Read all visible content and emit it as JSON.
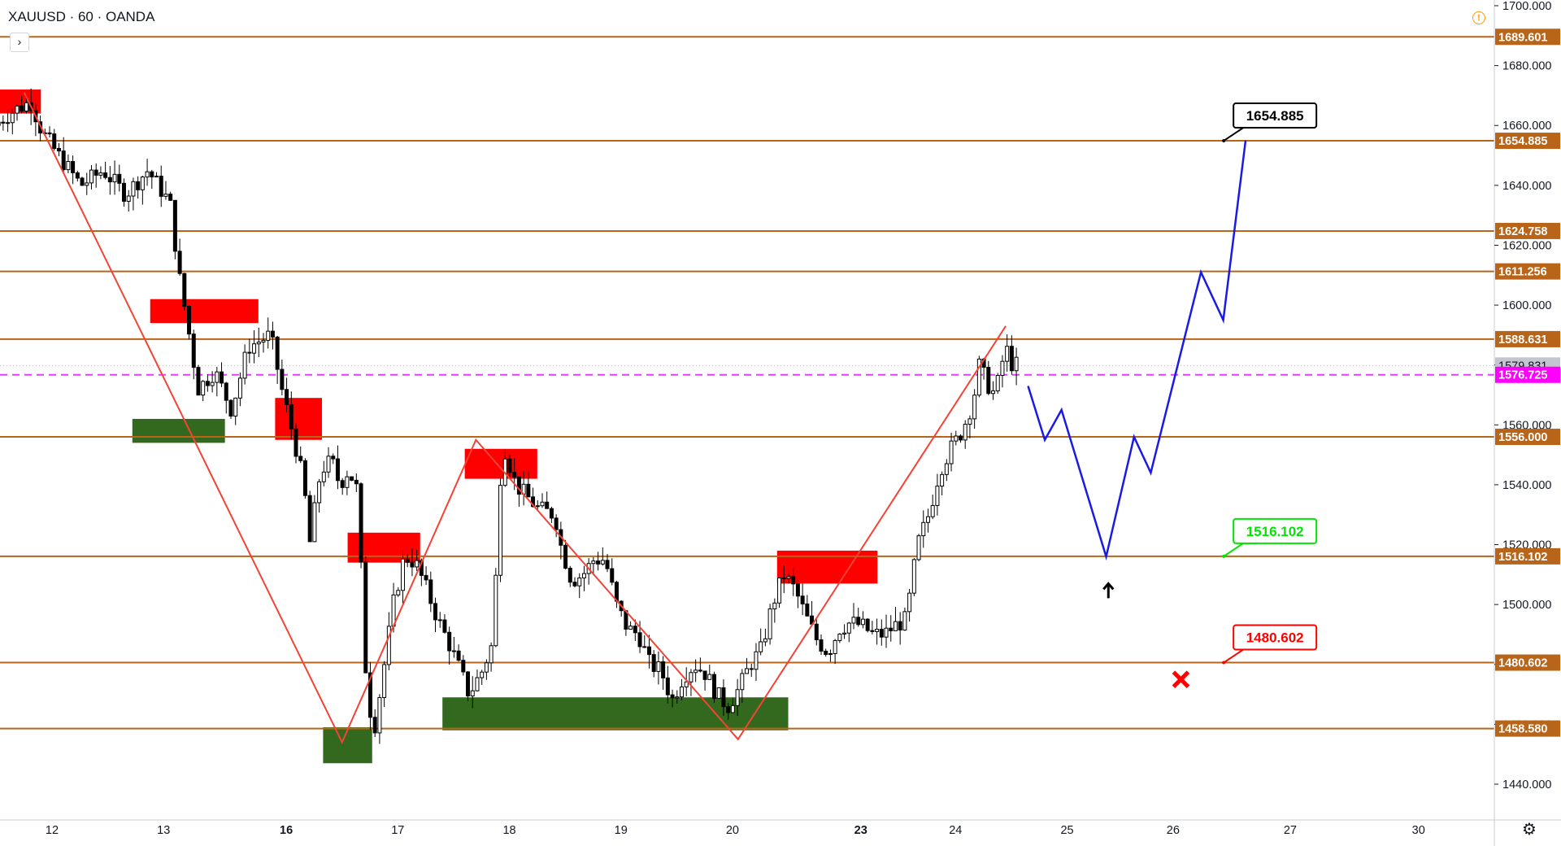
{
  "header": {
    "symbol": "XAUUSD · 60 · OANDA",
    "collapse_glyph": "›",
    "alert_glyph": "!"
  },
  "icons": {
    "alert": "alert-circle-icon",
    "settings": "gear-icon",
    "collapse": "chevron-right-icon",
    "cross": "x-mark-icon",
    "arrow": "arrow-up-icon"
  },
  "chart_data": {
    "type": "candlestick",
    "symbol": "XAUUSD",
    "interval": "60",
    "broker": "OANDA",
    "y_range": [
      1434,
      1705
    ],
    "y_ticks": [
      {
        "v": 1440,
        "label": "1440.000"
      },
      {
        "v": 1460,
        "label": "1460.000"
      },
      {
        "v": 1480,
        "label": "1480.000"
      },
      {
        "v": 1500,
        "label": "1500.000"
      },
      {
        "v": 1520,
        "label": "1520.000"
      },
      {
        "v": 1540,
        "label": "1540.000"
      },
      {
        "v": 1560,
        "label": "1560.000"
      },
      {
        "v": 1580,
        "label": "1580.000"
      },
      {
        "v": 1600,
        "label": "1600.000"
      },
      {
        "v": 1620,
        "label": "1620.000"
      },
      {
        "v": 1640,
        "label": "1640.000"
      },
      {
        "v": 1660,
        "label": "1660.000"
      },
      {
        "v": 1680,
        "label": "1680.000"
      },
      {
        "v": 1700,
        "label": "1700.000"
      }
    ],
    "x_ticks": [
      {
        "label": "12",
        "bold": false
      },
      {
        "label": "13",
        "bold": false
      },
      {
        "label": "16",
        "bold": true
      },
      {
        "label": "17",
        "bold": false
      },
      {
        "label": "18",
        "bold": false
      },
      {
        "label": "19",
        "bold": false
      },
      {
        "label": "20",
        "bold": false
      },
      {
        "label": "23",
        "bold": true
      },
      {
        "label": "24",
        "bold": false
      },
      {
        "label": "25",
        "bold": false
      },
      {
        "label": "26",
        "bold": false
      },
      {
        "label": "27",
        "bold": false
      },
      {
        "label": "30",
        "bold": false
      }
    ],
    "x_tick_pos": [
      0.0,
      1.0,
      2.1,
      3.1,
      4.1,
      5.1,
      6.1,
      7.25,
      8.1,
      9.1,
      10.05,
      11.1,
      12.25
    ],
    "x_units_range": [
      -0.48,
      13.2
    ],
    "levels": [
      {
        "v": 1689.601,
        "label": "1689.601"
      },
      {
        "v": 1654.885,
        "label": "1654.885"
      },
      {
        "v": 1624.758,
        "label": "1624.758"
      },
      {
        "v": 1611.256,
        "label": "1611.256"
      },
      {
        "v": 1588.631,
        "label": "1588.631"
      },
      {
        "v": 1556.0,
        "label": "1556.000"
      },
      {
        "v": 1516.102,
        "label": "1516.102"
      },
      {
        "v": 1480.602,
        "label": "1480.602"
      },
      {
        "v": 1458.58,
        "label": "1458.580"
      }
    ],
    "last_price": {
      "v": 1579.831,
      "label": "1579.831"
    },
    "current_line": {
      "v": 1576.725,
      "label": "1576.725"
    },
    "callouts": [
      {
        "text": "1654.885",
        "x": 10.3,
        "v": 1654.885,
        "color": "#000000"
      },
      {
        "text": "1516.102",
        "x": 10.3,
        "v": 1516.102,
        "color": "#00e600"
      },
      {
        "text": "1480.602",
        "x": 10.3,
        "v": 1480.602,
        "color": "#ff0000"
      }
    ],
    "supply_zones": [
      {
        "x0": -0.48,
        "x1": -0.1,
        "v0": 1664,
        "v1": 1672
      },
      {
        "x0": 0.88,
        "x1": 1.85,
        "v0": 1594,
        "v1": 1602
      },
      {
        "x0": 2.0,
        "x1": 2.42,
        "v0": 1555,
        "v1": 1569
      },
      {
        "x0": 2.65,
        "x1": 3.3,
        "v0": 1514,
        "v1": 1524
      },
      {
        "x0": 3.7,
        "x1": 4.35,
        "v0": 1542,
        "v1": 1552
      },
      {
        "x0": 6.5,
        "x1": 7.4,
        "v0": 1507,
        "v1": 1518
      }
    ],
    "demand_zones": [
      {
        "x0": 0.72,
        "x1": 1.55,
        "v0": 1554,
        "v1": 1562
      },
      {
        "x0": 2.43,
        "x1": 2.87,
        "v0": 1447,
        "v1": 1459
      },
      {
        "x0": 3.5,
        "x1": 6.6,
        "v0": 1458,
        "v1": 1469
      }
    ],
    "zigzag": [
      [
        -0.25,
        1671
      ],
      [
        2.6,
        1454
      ],
      [
        3.8,
        1555
      ],
      [
        6.15,
        1455
      ],
      [
        8.55,
        1593
      ]
    ],
    "projection": [
      [
        8.75,
        1573
      ],
      [
        8.9,
        1555
      ],
      [
        9.05,
        1565
      ],
      [
        9.45,
        1516
      ],
      [
        9.7,
        1556
      ],
      [
        9.85,
        1544
      ],
      [
        10.3,
        1611
      ],
      [
        10.5,
        1595
      ],
      [
        10.7,
        1655
      ]
    ],
    "arrow_up": {
      "x": 9.47,
      "v": 1507
    },
    "cross": {
      "x": 10.12,
      "v": 1475
    },
    "series_path": [
      [
        -0.48,
        1660
      ],
      [
        -0.3,
        1665
      ],
      [
        -0.15,
        1668
      ],
      [
        -0.05,
        1658
      ],
      [
        0.1,
        1650
      ],
      [
        0.3,
        1640
      ],
      [
        0.5,
        1645
      ],
      [
        0.7,
        1637
      ],
      [
        0.9,
        1645
      ],
      [
        1.1,
        1634
      ],
      [
        1.18,
        1610
      ],
      [
        1.25,
        1595
      ],
      [
        1.35,
        1572
      ],
      [
        1.5,
        1578
      ],
      [
        1.65,
        1565
      ],
      [
        1.8,
        1586
      ],
      [
        2.0,
        1590
      ],
      [
        2.1,
        1572
      ],
      [
        2.2,
        1557
      ],
      [
        2.3,
        1540
      ],
      [
        2.35,
        1520
      ],
      [
        2.45,
        1545
      ],
      [
        2.55,
        1548
      ],
      [
        2.62,
        1540
      ],
      [
        2.7,
        1545
      ],
      [
        2.78,
        1538
      ],
      [
        2.85,
        1480
      ],
      [
        2.92,
        1456
      ],
      [
        3.0,
        1475
      ],
      [
        3.1,
        1500
      ],
      [
        3.2,
        1516
      ],
      [
        3.3,
        1514
      ],
      [
        3.4,
        1505
      ],
      [
        3.5,
        1495
      ],
      [
        3.6,
        1487
      ],
      [
        3.7,
        1478
      ],
      [
        3.78,
        1470
      ],
      [
        3.9,
        1478
      ],
      [
        4.0,
        1488
      ],
      [
        4.05,
        1540
      ],
      [
        4.1,
        1552
      ],
      [
        4.2,
        1540
      ],
      [
        4.3,
        1536
      ],
      [
        4.4,
        1532
      ],
      [
        4.55,
        1530
      ],
      [
        4.6,
        1520
      ],
      [
        4.7,
        1508
      ],
      [
        4.8,
        1510
      ],
      [
        4.9,
        1515
      ],
      [
        5.0,
        1515
      ],
      [
        5.1,
        1500
      ],
      [
        5.2,
        1492
      ],
      [
        5.3,
        1490
      ],
      [
        5.4,
        1480
      ],
      [
        5.5,
        1478
      ],
      [
        5.6,
        1468
      ],
      [
        5.7,
        1476
      ],
      [
        5.8,
        1480
      ],
      [
        5.9,
        1477
      ],
      [
        6.0,
        1470
      ],
      [
        6.1,
        1466
      ],
      [
        6.2,
        1472
      ],
      [
        6.3,
        1480
      ],
      [
        6.4,
        1485
      ],
      [
        6.5,
        1500
      ],
      [
        6.6,
        1510
      ],
      [
        6.7,
        1505
      ],
      [
        6.8,
        1496
      ],
      [
        6.9,
        1488
      ],
      [
        7.0,
        1484
      ],
      [
        7.1,
        1492
      ],
      [
        7.2,
        1494
      ],
      [
        7.3,
        1493
      ],
      [
        7.4,
        1490
      ],
      [
        7.5,
        1490
      ],
      [
        7.6,
        1493
      ],
      [
        7.7,
        1495
      ],
      [
        7.8,
        1520
      ],
      [
        7.9,
        1530
      ],
      [
        8.0,
        1545
      ],
      [
        8.1,
        1552
      ],
      [
        8.2,
        1558
      ],
      [
        8.3,
        1568
      ],
      [
        8.35,
        1580
      ],
      [
        8.45,
        1572
      ],
      [
        8.5,
        1570
      ],
      [
        8.55,
        1580
      ],
      [
        8.6,
        1585
      ],
      [
        8.65,
        1580
      ]
    ]
  }
}
